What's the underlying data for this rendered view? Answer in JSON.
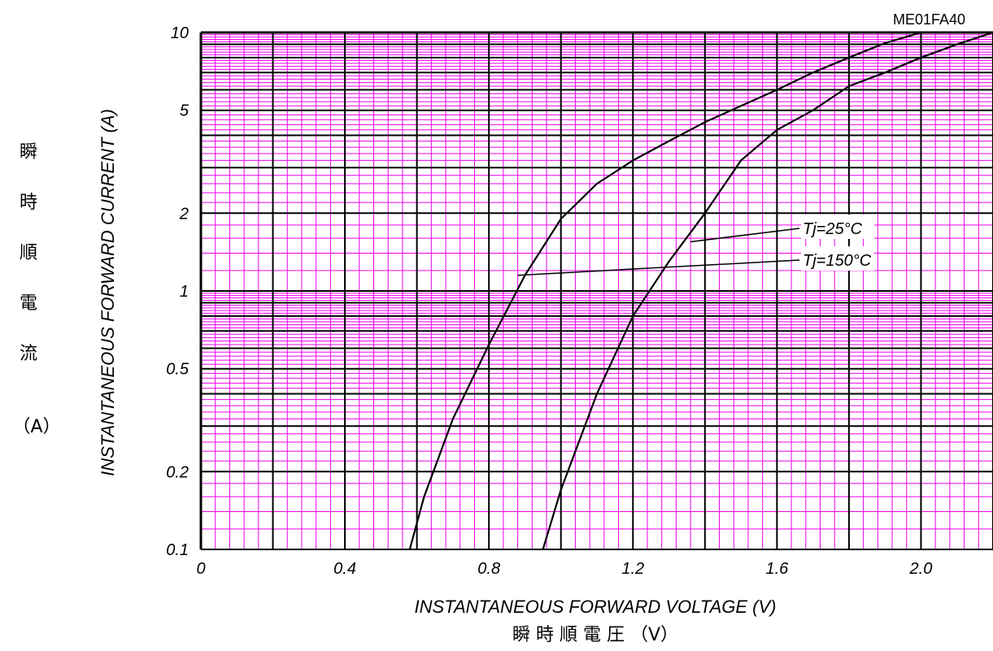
{
  "model_code": "ME01FA40",
  "chart_data": {
    "type": "line",
    "xlabel": "INSTANTANEOUS FORWARD VOLTAGE (V)",
    "xlabel_jp": "瞬 時 順 電 圧 （V）",
    "ylabel": "INSTANTANEOUS FORWARD CURRENT (A)",
    "ylabel_jp": [
      "瞬",
      "時",
      "順",
      "電",
      "流"
    ],
    "ylabel_jp_unit": "（A）",
    "xlim": [
      0,
      2.2
    ],
    "ylim": [
      0.1,
      10
    ],
    "yscale": "log",
    "x_ticks": [
      "0",
      "0.4",
      "0.8",
      "1.2",
      "1.6",
      "2.0"
    ],
    "x_tick_values": [
      0,
      0.4,
      0.8,
      1.2,
      1.6,
      2.0
    ],
    "y_ticks": [
      "0.1",
      "0.2",
      "0.5",
      "1",
      "2",
      "5",
      "10"
    ],
    "y_tick_values": [
      0.1,
      0.2,
      0.5,
      1,
      2,
      5,
      10
    ],
    "grid": true,
    "colors": {
      "minor_grid": "#ee00ee",
      "major_grid": "#000000",
      "curve": "#000000"
    },
    "series": [
      {
        "name": "Tj=150°C",
        "points": [
          [
            0.58,
            0.1
          ],
          [
            0.62,
            0.16
          ],
          [
            0.7,
            0.32
          ],
          [
            0.8,
            0.62
          ],
          [
            0.9,
            1.15
          ],
          [
            1.0,
            1.9
          ],
          [
            1.1,
            2.6
          ],
          [
            1.2,
            3.2
          ],
          [
            1.3,
            3.8
          ],
          [
            1.4,
            4.5
          ],
          [
            1.5,
            5.2
          ],
          [
            1.6,
            6.0
          ],
          [
            1.7,
            7.0
          ],
          [
            1.8,
            8.0
          ],
          [
            1.9,
            9.1
          ],
          [
            2.0,
            10.0
          ]
        ]
      },
      {
        "name": "Tj=25°C",
        "points": [
          [
            0.95,
            0.1
          ],
          [
            1.0,
            0.17
          ],
          [
            1.1,
            0.4
          ],
          [
            1.2,
            0.8
          ],
          [
            1.3,
            1.3
          ],
          [
            1.4,
            2.0
          ],
          [
            1.5,
            3.2
          ],
          [
            1.6,
            4.2
          ],
          [
            1.7,
            5.0
          ],
          [
            1.8,
            6.2
          ],
          [
            1.9,
            7.0
          ],
          [
            2.0,
            8.0
          ],
          [
            2.1,
            9.0
          ],
          [
            2.2,
            10.0
          ]
        ]
      }
    ],
    "annotations": [
      {
        "text": "Tj=25°C",
        "series": "Tj=25°C",
        "point": [
          1.36,
          1.55
        ]
      },
      {
        "text": "Tj=150°C",
        "series": "Tj=150°C",
        "point": [
          0.88,
          1.15
        ]
      }
    ]
  }
}
